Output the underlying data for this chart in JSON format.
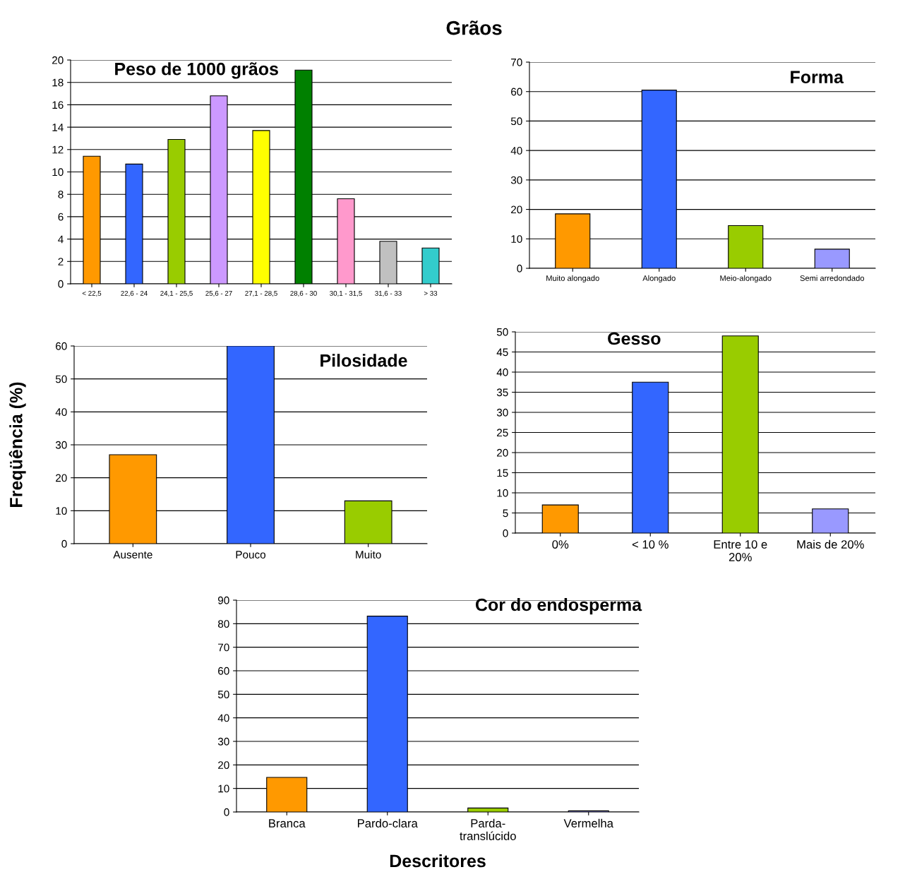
{
  "chart_data": [
    {
      "type": "bar",
      "title": "Peso de 1000 grãos",
      "annotations": [
        "Grãos"
      ],
      "categories": [
        "< 22,5",
        "22,6 - 24",
        "24,1 - 25,5",
        "25,6 - 27",
        "27,1 - 28,5",
        "28,6 - 30",
        "30,1 - 31,5",
        "31,6 - 33",
        "> 33"
      ],
      "values": [
        11.4,
        10.7,
        12.9,
        16.8,
        13.7,
        19.1,
        7.6,
        3.8,
        3.2
      ],
      "colors": [
        "#ff9900",
        "#3366ff",
        "#99cc00",
        "#cc99ff",
        "#ffff00",
        "#008000",
        "#ff99cc",
        "#c0c0c0",
        "#33cccc"
      ],
      "ylim": [
        0,
        20
      ],
      "yticks": [
        0,
        2,
        4,
        6,
        8,
        10,
        12,
        14,
        16,
        18,
        20
      ],
      "grid": "y"
    },
    {
      "type": "bar",
      "title": "Forma",
      "categories": [
        "Muito alongado",
        "Alongado",
        "Meio-alongado",
        "Semi arredondado"
      ],
      "values": [
        18.5,
        60.5,
        14.5,
        6.5
      ],
      "colors": [
        "#ff9900",
        "#3366ff",
        "#99cc00",
        "#9999ff"
      ],
      "ylim": [
        0,
        70
      ],
      "yticks": [
        0,
        10,
        20,
        30,
        40,
        50,
        60,
        70
      ],
      "grid": "y"
    },
    {
      "type": "bar",
      "title": "Pilosidade",
      "ylabel": "Freqüência (%)",
      "categories": [
        "Ausente",
        "Pouco",
        "Muito"
      ],
      "values": [
        27,
        60,
        13
      ],
      "colors": [
        "#ff9900",
        "#3366ff",
        "#99cc00"
      ],
      "ylim": [
        0,
        60
      ],
      "yticks": [
        0,
        10,
        20,
        30,
        40,
        50,
        60
      ],
      "grid": "y"
    },
    {
      "type": "bar",
      "title": "Gesso",
      "categories": [
        "0%",
        "< 10 %",
        "Entre 10 e\n20%",
        "Mais de 20%"
      ],
      "values": [
        7,
        37.5,
        49,
        6
      ],
      "colors": [
        "#ff9900",
        "#3366ff",
        "#99cc00",
        "#9999ff"
      ],
      "ylim": [
        0,
        50
      ],
      "yticks": [
        0,
        5,
        10,
        15,
        20,
        25,
        30,
        35,
        40,
        45,
        50
      ],
      "grid": "y"
    },
    {
      "type": "bar",
      "title": "Cor do endosperma",
      "xlabel": "Descritores",
      "categories": [
        "Branca",
        "Pardo-clara",
        "Parda-\ntranslúcido",
        "Vermelha"
      ],
      "values": [
        14.7,
        83.2,
        1.7,
        0.5
      ],
      "colors": [
        "#ff9900",
        "#3366ff",
        "#99cc00",
        "#9999ff"
      ],
      "ylim": [
        0,
        90
      ],
      "yticks": [
        0,
        10,
        20,
        30,
        40,
        50,
        60,
        70,
        80,
        90
      ],
      "grid": "y"
    }
  ]
}
